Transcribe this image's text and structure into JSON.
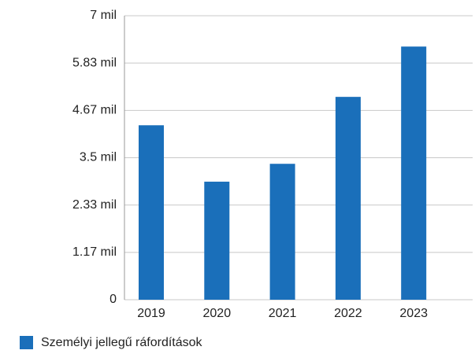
{
  "chart_data": {
    "type": "bar",
    "categories": [
      "2019",
      "2020",
      "2021",
      "2022",
      "2023"
    ],
    "series": [
      {
        "name": "Személyi jellegű ráfordítások",
        "color": "#1a6fba",
        "values": [
          4.3,
          2.91,
          3.35,
          5.0,
          6.24
        ]
      }
    ],
    "ylim": [
      0,
      7
    ],
    "yticks": [
      0,
      {
        "value": 1.1667,
        "label": "1.17 mil"
      },
      {
        "value": 2.3333,
        "label": "2.33 mil"
      },
      {
        "value": 3.5,
        "label": "3.5 mil"
      },
      {
        "value": 4.6667,
        "label": "4.67 mil"
      },
      {
        "value": 5.8333,
        "label": "5.83 mil"
      },
      {
        "value": 7,
        "label": "7 mil"
      }
    ],
    "grid": true
  }
}
